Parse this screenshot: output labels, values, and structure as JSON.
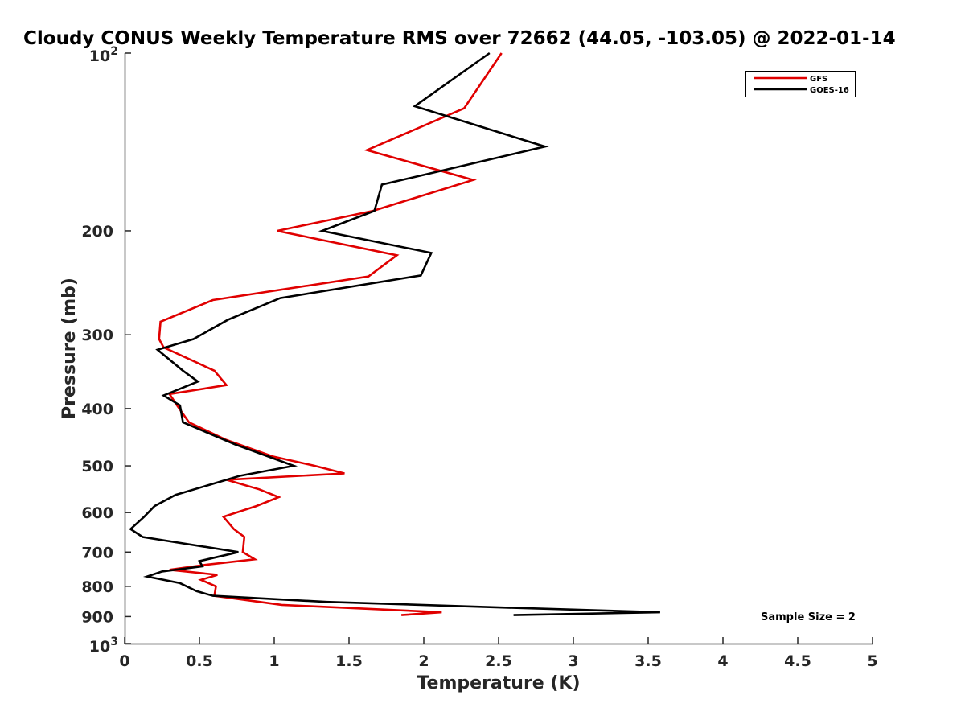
{
  "chart_data": {
    "type": "line",
    "title": "Cloudy CONUS Weekly Temperature RMS over 72662 (44.05, -103.05) @ 2022-01-14",
    "xlabel": "Temperature (K)",
    "ylabel": "Pressure (mb)",
    "xlim": [
      0,
      5
    ],
    "ylim": [
      100,
      1000
    ],
    "y_scale": "log",
    "y_reversed": true,
    "grid": false,
    "legend_position": "top-right",
    "x_ticks": [
      0,
      0.5,
      1,
      1.5,
      2,
      2.5,
      3,
      3.5,
      4,
      4.5,
      5
    ],
    "x_tick_labels": [
      "0",
      "0.5",
      "1",
      "1.5",
      "2",
      "2.5",
      "3",
      "3.5",
      "4",
      "4.5",
      "5"
    ],
    "y_ticks": [
      200,
      300,
      400,
      500,
      600,
      700,
      800,
      900
    ],
    "y_tick_labels": [
      "200",
      "300",
      "400",
      "500",
      "600",
      "700",
      "800",
      "900"
    ],
    "y_decade_ticks": [
      {
        "value": 100,
        "base": "10",
        "exp": "2"
      },
      {
        "value": 1000,
        "base": "10",
        "exp": "3"
      }
    ],
    "series": [
      {
        "name": "GFS",
        "color": "#e00000",
        "x": [
          2.52,
          2.27,
          1.62,
          2.33,
          1.66,
          1.02,
          1.82,
          1.63,
          0.59,
          0.24,
          0.23,
          0.26,
          0.6,
          0.68,
          0.3,
          0.35,
          0.43,
          0.68,
          0.99,
          1.27,
          1.47,
          0.68,
          0.9,
          1.03,
          0.88,
          0.66,
          0.73,
          0.8,
          0.79,
          0.87,
          0.55,
          0.3,
          0.62,
          0.51,
          0.61,
          0.6,
          1.05,
          2.12,
          1.85
        ],
        "y": [
          100,
          124,
          146,
          164,
          185,
          200,
          220,
          239,
          262,
          285,
          305,
          315,
          345,
          365,
          378,
          395,
          422,
          452,
          482,
          500,
          515,
          528,
          548,
          565,
          585,
          610,
          640,
          660,
          700,
          720,
          735,
          750,
          765,
          780,
          800,
          830,
          860,
          885,
          895
        ]
      },
      {
        "name": "GOES-16",
        "color": "#000000",
        "x": [
          2.44,
          1.94,
          2.81,
          1.72,
          1.67,
          1.32,
          2.05,
          1.98,
          1.04,
          0.69,
          0.46,
          0.22,
          0.39,
          0.49,
          0.26,
          0.37,
          0.39,
          0.74,
          1.13,
          0.77,
          0.34,
          0.2,
          0.13,
          0.04,
          0.12,
          0.76,
          0.5,
          0.52,
          0.25,
          0.15,
          0.37,
          0.48,
          0.59,
          1.35,
          2.6,
          3.58,
          2.6
        ],
        "y": [
          100,
          123,
          144,
          167,
          185,
          200,
          218,
          238,
          260,
          283,
          305,
          318,
          345,
          360,
          380,
          395,
          422,
          460,
          500,
          520,
          560,
          585,
          610,
          640,
          660,
          700,
          725,
          740,
          755,
          770,
          790,
          815,
          830,
          850,
          870,
          885,
          895
        ]
      }
    ],
    "annotations": [
      {
        "text": "Sample Size = 2",
        "x": 4.3,
        "y": 900
      }
    ]
  }
}
